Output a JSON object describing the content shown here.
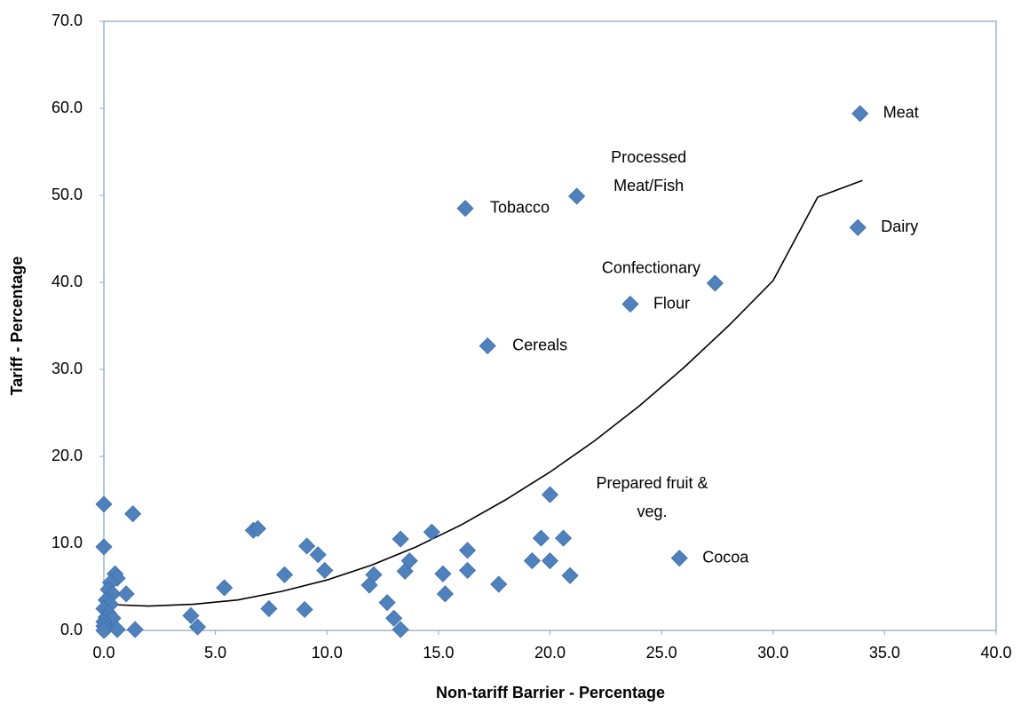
{
  "chart_data": {
    "type": "scatter",
    "x_label": "Non-tariff Barrier - Percentage",
    "y_label": "Tariff - Percentage",
    "xlim": [
      0,
      40
    ],
    "ylim": [
      0,
      70
    ],
    "xticks": [
      {
        "value": 0,
        "label": "0.0"
      },
      {
        "value": 5,
        "label": "5.0"
      },
      {
        "value": 10,
        "label": "10.0"
      },
      {
        "value": 15,
        "label": "15.0"
      },
      {
        "value": 20,
        "label": "20.0"
      },
      {
        "value": 25,
        "label": "25.0"
      },
      {
        "value": 30,
        "label": "30.0"
      },
      {
        "value": 35,
        "label": "35.0"
      },
      {
        "value": 40,
        "label": "40.0"
      }
    ],
    "yticks": [
      {
        "value": 0,
        "label": "0.0"
      },
      {
        "value": 10,
        "label": "10.0"
      },
      {
        "value": 20,
        "label": "20.0"
      },
      {
        "value": 30,
        "label": "30.0"
      },
      {
        "value": 40,
        "label": "40.0"
      },
      {
        "value": 50,
        "label": "50.0"
      },
      {
        "value": 60,
        "label": "60.0"
      },
      {
        "value": 70,
        "label": "70.0"
      }
    ],
    "grid": false,
    "color": "#4f81bd",
    "x": [
      33.9,
      33.8,
      21.2,
      16.2,
      27.4,
      23.6,
      17.2,
      20.0,
      25.8,
      0,
      0,
      1.3,
      0.5,
      0.6,
      0.3,
      0.2,
      0.4,
      1.0,
      0.1,
      0.3,
      0,
      0.2,
      0.1,
      0.4,
      0,
      0,
      0.1,
      0,
      0.6,
      1.4,
      3.9,
      4.2,
      5.4,
      6.7,
      6.9,
      7.4,
      8.1,
      9.0,
      9.1,
      9.6,
      9.9,
      11.9,
      12.1,
      12.7,
      13.0,
      13.3,
      13.3,
      13.5,
      13.7,
      14.7,
      15.2,
      15.3,
      16.3,
      16.3,
      17.7,
      19.2,
      19.6,
      20.0,
      20.6,
      20.9
    ],
    "values": [
      59.4,
      46.3,
      49.9,
      48.5,
      39.9,
      37.5,
      32.7,
      15.6,
      8.3,
      14.5,
      9.6,
      13.4,
      6.5,
      6.0,
      5.5,
      4.7,
      4.2,
      4.2,
      3.5,
      3.0,
      2.5,
      2.0,
      1.5,
      1.4,
      1.0,
      0.5,
      0.2,
      0,
      0.1,
      0.1,
      1.7,
      0.4,
      4.9,
      11.5,
      11.7,
      2.5,
      6.4,
      2.4,
      9.7,
      8.7,
      6.9,
      5.2,
      6.4,
      3.2,
      1.4,
      0.1,
      10.5,
      6.8,
      8.0,
      11.3,
      6.5,
      4.2,
      9.2,
      6.9,
      5.3,
      8.0,
      10.6,
      8.0,
      10.6,
      6.3
    ],
    "labels": [
      "Meat",
      "Dairy",
      "Processed\nMeat/Fish",
      "Tobacco",
      "Confectionary",
      "Flour",
      "Cereals",
      "Prepared fruit &\nveg.",
      "Cocoa",
      null,
      null,
      null,
      null,
      null,
      null,
      null,
      null,
      null,
      null,
      null,
      null,
      null,
      null,
      null,
      null,
      null,
      null,
      null,
      null,
      null,
      null,
      null,
      null,
      null,
      null,
      null,
      null,
      null,
      null,
      null,
      null,
      null,
      null,
      null,
      null,
      null,
      null,
      null,
      null,
      null,
      null,
      null,
      null,
      null,
      null,
      null,
      null,
      null,
      null,
      null
    ],
    "trend": {
      "color": "#000000",
      "x": [
        0,
        2,
        4,
        6,
        8,
        10,
        12,
        14,
        16,
        18,
        20,
        22,
        24,
        26,
        28,
        30,
        32,
        34
      ],
      "values": [
        3.0,
        2.8,
        3.0,
        3.5,
        4.5,
        5.8,
        7.5,
        9.6,
        12.1,
        15.0,
        18.2,
        21.8,
        25.8,
        30.2,
        35.0,
        40.2,
        49.8,
        51.7
      ]
    }
  }
}
